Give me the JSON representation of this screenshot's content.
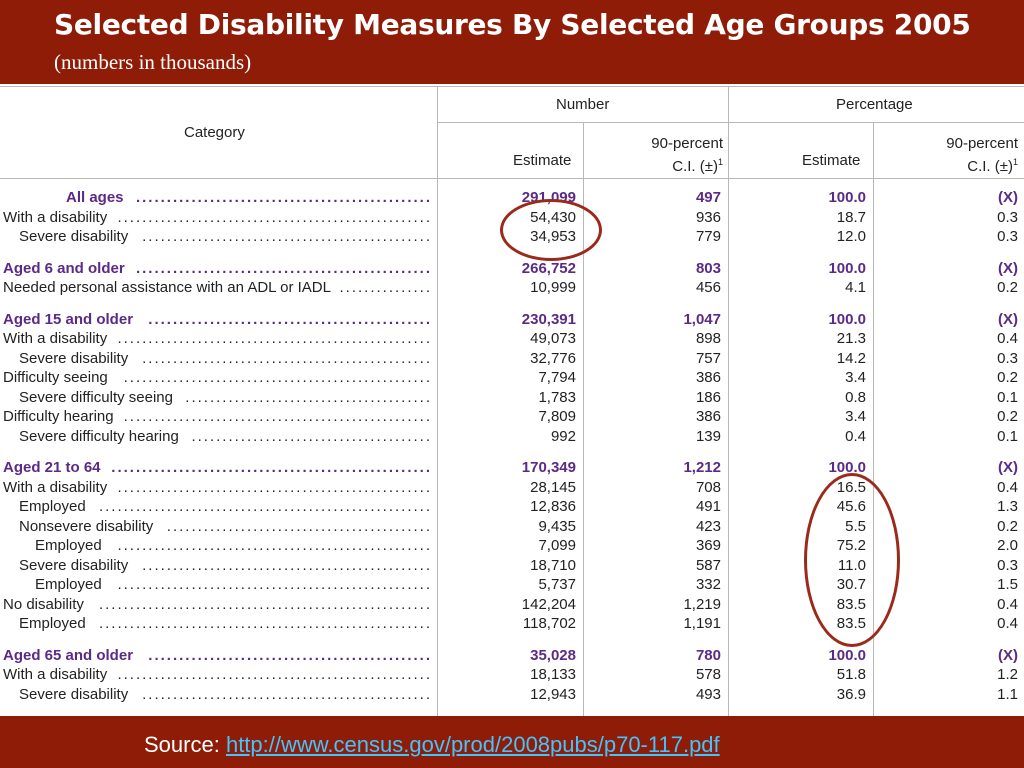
{
  "slide": {
    "title": "Selected Disability Measures By Selected Age Groups 2005",
    "subtitle": "(numbers in thousands)"
  },
  "table": {
    "header": {
      "category": "Category",
      "number": "Number",
      "percentage": "Percentage",
      "estimate": "Estimate",
      "ci_line1": "90-percent",
      "ci_line2": "C.I. (±)",
      "ci_sup": "1"
    },
    "rows": [
      {
        "label": "All ages",
        "n_est": "291,099",
        "n_ci": "497",
        "p_est": "100.0",
        "p_ci": "(X)"
      },
      {
        "label": "With a disability",
        "n_est": "54,430",
        "n_ci": "936",
        "p_est": "18.7",
        "p_ci": "0.3"
      },
      {
        "label": "Severe disability",
        "n_est": "34,953",
        "n_ci": "779",
        "p_est": "12.0",
        "p_ci": "0.3"
      },
      {
        "label": "Aged 6 and older",
        "n_est": "266,752",
        "n_ci": "803",
        "p_est": "100.0",
        "p_ci": "(X)"
      },
      {
        "label": "Needed personal assistance with an ADL or IADL",
        "n_est": "10,999",
        "n_ci": "456",
        "p_est": "4.1",
        "p_ci": "0.2"
      },
      {
        "label": "Aged 15 and older",
        "n_est": "230,391",
        "n_ci": "1,047",
        "p_est": "100.0",
        "p_ci": "(X)"
      },
      {
        "label": "With a disability",
        "n_est": "49,073",
        "n_ci": "898",
        "p_est": "21.3",
        "p_ci": "0.4"
      },
      {
        "label": "Severe disability",
        "n_est": "32,776",
        "n_ci": "757",
        "p_est": "14.2",
        "p_ci": "0.3"
      },
      {
        "label": "Difficulty seeing",
        "n_est": "7,794",
        "n_ci": "386",
        "p_est": "3.4",
        "p_ci": "0.2"
      },
      {
        "label": "Severe difficulty seeing",
        "n_est": "1,783",
        "n_ci": "186",
        "p_est": "0.8",
        "p_ci": "0.1"
      },
      {
        "label": "Difficulty hearing",
        "n_est": "7,809",
        "n_ci": "386",
        "p_est": "3.4",
        "p_ci": "0.2"
      },
      {
        "label": "Severe difficulty hearing",
        "n_est": "992",
        "n_ci": "139",
        "p_est": "0.4",
        "p_ci": "0.1"
      },
      {
        "label": "Aged 21 to 64",
        "n_est": "170,349",
        "n_ci": "1,212",
        "p_est": "100.0",
        "p_ci": "(X)"
      },
      {
        "label": "With a disability",
        "n_est": "28,145",
        "n_ci": "708",
        "p_est": "16.5",
        "p_ci": "0.4"
      },
      {
        "label": "Employed",
        "n_est": "12,836",
        "n_ci": "491",
        "p_est": "45.6",
        "p_ci": "1.3"
      },
      {
        "label": "Nonsevere disability",
        "n_est": "9,435",
        "n_ci": "423",
        "p_est": "5.5",
        "p_ci": "0.2"
      },
      {
        "label": "Employed",
        "n_est": "7,099",
        "n_ci": "369",
        "p_est": "75.2",
        "p_ci": "2.0"
      },
      {
        "label": "Severe disability",
        "n_est": "18,710",
        "n_ci": "587",
        "p_est": "11.0",
        "p_ci": "0.3"
      },
      {
        "label": "Employed",
        "n_est": "5,737",
        "n_ci": "332",
        "p_est": "30.7",
        "p_ci": "1.5"
      },
      {
        "label": "No disability",
        "n_est": "142,204",
        "n_ci": "1,219",
        "p_est": "83.5",
        "p_ci": "0.4"
      },
      {
        "label": "Employed",
        "n_est": "118,702",
        "n_ci": "1,191",
        "p_est": "83.5",
        "p_ci": "0.4"
      },
      {
        "label": "Aged 65 and older",
        "n_est": "35,028",
        "n_ci": "780",
        "p_est": "100.0",
        "p_ci": "(X)"
      },
      {
        "label": "With a disability",
        "n_est": "18,133",
        "n_ci": "578",
        "p_est": "51.8",
        "p_ci": "1.2"
      },
      {
        "label": "Severe disability",
        "n_est": "12,943",
        "n_ci": "493",
        "p_est": "36.9",
        "p_ci": "1.1"
      }
    ]
  },
  "source": {
    "label": "Source:",
    "url": "http://www.census.gov/prod/2008pubs/p70-117.pdf"
  },
  "colors": {
    "frame": "#8e1c07",
    "group_text": "#5b2a86",
    "ring": "#9a2a1a",
    "link": "#3fc6ff"
  }
}
